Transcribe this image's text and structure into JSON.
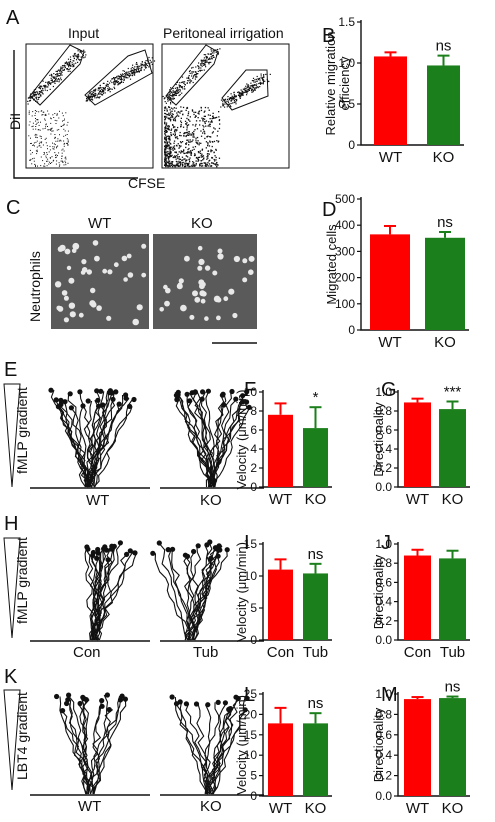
{
  "panels": {
    "A": {
      "label": "A",
      "input_title": "Input",
      "irrigation_title": "Peritoneal irrigation",
      "ylabel": "DiI",
      "xlabel": "CFSE"
    },
    "C": {
      "label": "C",
      "wt": "WT",
      "ko": "KO",
      "side_label": "Neutrophils"
    },
    "E": {
      "label": "E",
      "gradient": "fMLP gradient",
      "left": "WT",
      "right": "KO"
    },
    "H": {
      "label": "H",
      "gradient": "fMLP gradient",
      "left": "Con",
      "right": "Tub"
    },
    "K": {
      "label": "K",
      "gradient": "LBT4 gradient",
      "left": "WT",
      "right": "KO"
    }
  },
  "colors": {
    "red": "#ff0000",
    "green": "#1b7f1b",
    "dark": "#111111"
  },
  "chart_data": [
    {
      "id": "B",
      "label": "B",
      "type": "bar",
      "categories": [
        "WT",
        "KO"
      ],
      "values": [
        1.08,
        0.97
      ],
      "errors": [
        0.05,
        0.12
      ],
      "ylabel": "Relative migration efficiency",
      "ylim": [
        0,
        1.5
      ],
      "ticks": [
        0,
        0.5,
        1.0,
        1.5
      ],
      "tick_labels": [
        "0",
        "0.5",
        "1.0",
        "1.5"
      ],
      "significance": "ns"
    },
    {
      "id": "D",
      "label": "D",
      "type": "bar",
      "categories": [
        "WT",
        "KO"
      ],
      "values": [
        365,
        352
      ],
      "errors": [
        32,
        22
      ],
      "ylabel": "Migrated cells",
      "ylim": [
        0,
        500
      ],
      "ticks": [
        0,
        100,
        200,
        300,
        400,
        500
      ],
      "tick_labels": [
        "0",
        "100",
        "200",
        "300",
        "400",
        "500"
      ],
      "significance": "ns"
    },
    {
      "id": "F",
      "label": "F",
      "type": "bar",
      "categories": [
        "WT",
        "KO"
      ],
      "values": [
        7.6,
        6.2
      ],
      "errors": [
        1.2,
        2.2
      ],
      "ylabel": "Velocity (μm/min)",
      "ylim": [
        0,
        10
      ],
      "ticks": [
        0,
        2,
        4,
        6,
        8,
        10
      ],
      "tick_labels": [
        "0",
        "2",
        "4",
        "6",
        "8",
        "10"
      ],
      "significance": "*"
    },
    {
      "id": "G",
      "label": "G",
      "type": "bar",
      "categories": [
        "WT",
        "KO"
      ],
      "values": [
        0.89,
        0.82
      ],
      "errors": [
        0.04,
        0.08
      ],
      "ylabel": "Directionality",
      "ylim": [
        0,
        1.0
      ],
      "ticks": [
        0,
        0.2,
        0.4,
        0.6,
        0.8,
        1.0
      ],
      "tick_labels": [
        "0.0",
        "0.2",
        "0.4",
        "0.6",
        "0.8",
        "1.0"
      ],
      "significance": "***"
    },
    {
      "id": "I",
      "label": "I",
      "type": "bar",
      "categories": [
        "Con",
        "Tub"
      ],
      "values": [
        11.0,
        10.4
      ],
      "errors": [
        1.6,
        1.5
      ],
      "ylabel": "Velocity (μm/min)",
      "ylim": [
        0,
        15
      ],
      "ticks": [
        0,
        5,
        10,
        15
      ],
      "tick_labels": [
        "0",
        "5",
        "10",
        "15"
      ],
      "significance": "ns"
    },
    {
      "id": "J",
      "label": "J",
      "type": "bar",
      "categories": [
        "Con",
        "Tub"
      ],
      "values": [
        0.88,
        0.85
      ],
      "errors": [
        0.06,
        0.08
      ],
      "ylabel": "Directionality",
      "ylim": [
        0,
        1.0
      ],
      "ticks": [
        0,
        0.2,
        0.4,
        0.6,
        0.8,
        1.0
      ],
      "tick_labels": [
        "0.0",
        "0.2",
        "0.4",
        "0.6",
        "0.8",
        "1.0"
      ],
      "significance": ""
    },
    {
      "id": "L",
      "label": "L",
      "type": "bar",
      "categories": [
        "WT",
        "KO"
      ],
      "values": [
        17.8,
        17.8
      ],
      "errors": [
        3.8,
        2.5
      ],
      "ylabel": "Velocity (μm/min)",
      "ylim": [
        0,
        25
      ],
      "ticks": [
        0,
        5,
        10,
        15,
        20,
        25
      ],
      "tick_labels": [
        "0",
        "5",
        "10",
        "15",
        "20",
        "25"
      ],
      "significance": "ns"
    },
    {
      "id": "M",
      "label": "M",
      "type": "bar",
      "categories": [
        "WT",
        "KO"
      ],
      "values": [
        0.95,
        0.96
      ],
      "errors": [
        0.02,
        0.015
      ],
      "ylabel": "Directionality",
      "ylim": [
        0,
        1.0
      ],
      "ticks": [
        0,
        0.2,
        0.4,
        0.6,
        0.8,
        1.0
      ],
      "tick_labels": [
        "0.0",
        "0.2",
        "0.4",
        "0.6",
        "0.8",
        "1.0"
      ],
      "significance": "ns"
    }
  ]
}
